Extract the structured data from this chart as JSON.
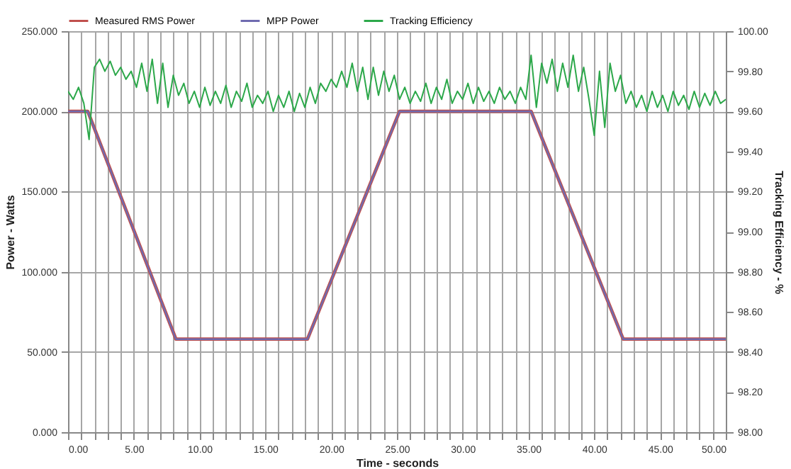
{
  "chart_data": {
    "type": "line",
    "xlabel": "Time - seconds",
    "ylabel": "Power - Watts",
    "y2label": "Tracking Efficiency - %",
    "series": [
      {
        "name": "Measured RMS Power",
        "color": "#c0504d",
        "x": [
          0,
          1.5,
          8.2,
          18.2,
          25.2,
          35.2,
          42.2,
          50
        ],
        "values": [
          200,
          200,
          58,
          58,
          200,
          200,
          58,
          58
        ]
      },
      {
        "name": "MPP Power",
        "color": "#6f6bb0",
        "x": [
          0,
          1.5,
          8.2,
          18.2,
          25.2,
          35.2,
          42.2,
          50
        ],
        "values": [
          200,
          200,
          58,
          58,
          200,
          200,
          58,
          58
        ]
      },
      {
        "name": "Tracking Efficiency",
        "color": "#2ca84a",
        "axis": "y2",
        "x": [
          0,
          0.4,
          0.8,
          1.2,
          1.6,
          2,
          2.4,
          2.8,
          3.2,
          3.6,
          4,
          4.4,
          4.8,
          5.2,
          5.6,
          6,
          6.4,
          6.8,
          7.2,
          7.6,
          8,
          8.4,
          8.8,
          9.2,
          9.6,
          10,
          10.4,
          10.8,
          11.2,
          11.6,
          12,
          12.4,
          12.8,
          13.2,
          13.6,
          14,
          14.4,
          14.8,
          15.2,
          15.6,
          16,
          16.4,
          16.8,
          17.2,
          17.6,
          18,
          18.4,
          18.8,
          19.2,
          19.6,
          20,
          20.4,
          20.8,
          21.2,
          21.6,
          22,
          22.4,
          22.8,
          23.2,
          23.6,
          24,
          24.4,
          24.8,
          25.2,
          25.6,
          26,
          26.4,
          26.8,
          27.2,
          27.6,
          28,
          28.4,
          28.8,
          29.2,
          29.6,
          30,
          30.4,
          30.8,
          31.2,
          31.6,
          32,
          32.4,
          32.8,
          33.2,
          33.6,
          34,
          34.4,
          34.8,
          35.2,
          35.6,
          36,
          36.4,
          36.8,
          37.2,
          37.6,
          38,
          38.4,
          38.8,
          39.2,
          39.6,
          40,
          40.4,
          40.8,
          41.2,
          41.6,
          42,
          42.4,
          42.8,
          43.2,
          43.6,
          44,
          44.4,
          44.8,
          45.2,
          45.6,
          46,
          46.4,
          46.8,
          47.2,
          47.6,
          48,
          48.4,
          48.8,
          49.2,
          49.6,
          50
        ],
        "values": [
          99.7,
          99.66,
          99.72,
          99.64,
          99.46,
          99.82,
          99.86,
          99.8,
          99.85,
          99.78,
          99.82,
          99.76,
          99.8,
          99.72,
          99.84,
          99.7,
          99.86,
          99.64,
          99.84,
          99.62,
          99.78,
          99.68,
          99.74,
          99.64,
          99.7,
          99.62,
          99.72,
          99.63,
          99.7,
          99.64,
          99.73,
          99.62,
          99.7,
          99.65,
          99.74,
          99.62,
          99.68,
          99.64,
          99.7,
          99.6,
          99.68,
          99.62,
          99.7,
          99.6,
          99.69,
          99.62,
          99.72,
          99.64,
          99.74,
          99.7,
          99.76,
          99.72,
          99.8,
          99.72,
          99.84,
          99.7,
          99.82,
          99.66,
          99.82,
          99.68,
          99.8,
          99.7,
          99.78,
          99.66,
          99.72,
          99.64,
          99.7,
          99.65,
          99.74,
          99.64,
          99.72,
          99.66,
          99.76,
          99.64,
          99.7,
          99.66,
          99.74,
          99.64,
          99.72,
          99.65,
          99.7,
          99.64,
          99.72,
          99.66,
          99.7,
          99.64,
          99.72,
          99.66,
          99.88,
          99.62,
          99.84,
          99.74,
          99.86,
          99.7,
          99.84,
          99.72,
          99.88,
          99.7,
          99.82,
          99.66,
          99.48,
          99.8,
          99.52,
          99.84,
          99.7,
          99.78,
          99.64,
          99.7,
          99.62,
          99.68,
          99.6,
          99.7,
          99.62,
          99.68,
          99.6,
          99.7,
          99.63,
          99.68,
          99.61,
          99.7,
          99.62,
          99.69,
          99.63,
          99.7,
          99.64,
          99.66
        ]
      }
    ],
    "xlim": [
      0,
      50
    ],
    "xticks": [
      {
        "value": 0,
        "label": "0.00"
      },
      {
        "value": 1,
        "label": null
      },
      {
        "value": 2,
        "label": null
      },
      {
        "value": 3,
        "label": null
      },
      {
        "value": 4,
        "label": null
      },
      {
        "value": 5,
        "label": "5.00"
      },
      {
        "value": 6,
        "label": null
      },
      {
        "value": 7,
        "label": null
      },
      {
        "value": 8,
        "label": null
      },
      {
        "value": 9,
        "label": null
      },
      {
        "value": 10,
        "label": "10.00"
      },
      {
        "value": 11,
        "label": null
      },
      {
        "value": 12,
        "label": null
      },
      {
        "value": 13,
        "label": null
      },
      {
        "value": 14,
        "label": null
      },
      {
        "value": 15,
        "label": "15.00"
      },
      {
        "value": 16,
        "label": null
      },
      {
        "value": 17,
        "label": null
      },
      {
        "value": 18,
        "label": null
      },
      {
        "value": 19,
        "label": null
      },
      {
        "value": 20,
        "label": "20.00"
      },
      {
        "value": 21,
        "label": null
      },
      {
        "value": 22,
        "label": null
      },
      {
        "value": 23,
        "label": null
      },
      {
        "value": 24,
        "label": null
      },
      {
        "value": 25,
        "label": "25.00"
      },
      {
        "value": 26,
        "label": null
      },
      {
        "value": 27,
        "label": null
      },
      {
        "value": 28,
        "label": null
      },
      {
        "value": 29,
        "label": null
      },
      {
        "value": 30,
        "label": "30.00"
      },
      {
        "value": 31,
        "label": null
      },
      {
        "value": 32,
        "label": null
      },
      {
        "value": 33,
        "label": null
      },
      {
        "value": 34,
        "label": null
      },
      {
        "value": 35,
        "label": "35.00"
      },
      {
        "value": 36,
        "label": null
      },
      {
        "value": 37,
        "label": null
      },
      {
        "value": 38,
        "label": null
      },
      {
        "value": 39,
        "label": null
      },
      {
        "value": 40,
        "label": "40.00"
      },
      {
        "value": 41,
        "label": null
      },
      {
        "value": 42,
        "label": null
      },
      {
        "value": 43,
        "label": null
      },
      {
        "value": 44,
        "label": null
      },
      {
        "value": 45,
        "label": "45.00"
      },
      {
        "value": 46,
        "label": null
      },
      {
        "value": 47,
        "label": null
      },
      {
        "value": 48,
        "label": null
      },
      {
        "value": 49,
        "label": null
      },
      {
        "value": 50,
        "label": "50.00"
      }
    ],
    "ylim": [
      0,
      250
    ],
    "yticks": [
      {
        "value": 0,
        "label": "0.000"
      },
      {
        "value": 50,
        "label": "50.000"
      },
      {
        "value": 100,
        "label": "100.000"
      },
      {
        "value": 150,
        "label": "150.000"
      },
      {
        "value": 200,
        "label": "200.000"
      },
      {
        "value": 250,
        "label": "250.000"
      }
    ],
    "y2lim": [
      98,
      100
    ],
    "y2ticks": [
      {
        "value": 98,
        "label": "98.00"
      },
      {
        "value": 98.2,
        "label": "98.20"
      },
      {
        "value": 98.4,
        "label": "98.40"
      },
      {
        "value": 98.6,
        "label": "98.60"
      },
      {
        "value": 98.8,
        "label": "98.80"
      },
      {
        "value": 99,
        "label": "99.00"
      },
      {
        "value": 99.2,
        "label": "99.20"
      },
      {
        "value": 99.4,
        "label": "99.40"
      },
      {
        "value": 99.6,
        "label": "99.60"
      },
      {
        "value": 99.8,
        "label": "99.80"
      },
      {
        "value": 100,
        "label": "100.00"
      }
    ],
    "grid": true,
    "legend": "top",
    "marker": "none",
    "line_style": "solid"
  }
}
